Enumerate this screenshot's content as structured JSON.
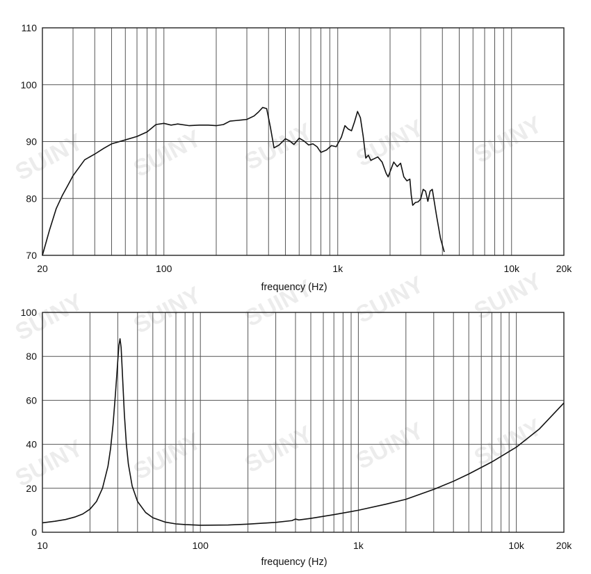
{
  "watermark": "SUINY",
  "chart_data": [
    {
      "type": "line",
      "xscale": "log",
      "xlim": [
        20,
        20000
      ],
      "ylim": [
        70,
        110
      ],
      "xlabel": "frequency (Hz)",
      "ylabel": "",
      "grid": true,
      "x_ticks": [
        {
          "value": 20,
          "label": "20"
        },
        {
          "value": 100,
          "label": "100"
        },
        {
          "value": 1000,
          "label": "1k"
        },
        {
          "value": 10000,
          "label": "10k"
        },
        {
          "value": 20000,
          "label": "20k"
        }
      ],
      "y_ticks": [
        {
          "value": 70,
          "label": "70"
        },
        {
          "value": 80,
          "label": "80"
        },
        {
          "value": 90,
          "label": "90"
        },
        {
          "value": 100,
          "label": "100"
        },
        {
          "value": 110,
          "label": "110"
        }
      ],
      "series": [
        {
          "x": [
            20,
            22,
            24,
            26,
            28,
            30,
            35,
            40,
            45,
            50,
            60,
            70,
            80,
            90,
            100,
            110,
            120,
            140,
            160,
            180,
            200,
            220,
            240,
            260,
            280,
            300,
            330,
            350,
            370,
            390,
            410,
            430,
            460,
            500,
            530,
            560,
            600,
            640,
            680,
            720,
            760,
            800,
            860,
            920,
            980,
            1050,
            1100,
            1150,
            1200,
            1250,
            1300,
            1350,
            1400,
            1450,
            1500,
            1550,
            1600,
            1700,
            1800,
            1900,
            1950,
            2000,
            2100,
            2200,
            2300,
            2400,
            2500,
            2600,
            2650,
            2700,
            2800,
            2900,
            3000,
            3100,
            3200,
            3300,
            3400,
            3500,
            3700,
            3900,
            4100
          ],
          "y": [
            70,
            74.5,
            78.2,
            80.5,
            82.3,
            84,
            86.8,
            87.8,
            88.8,
            89.6,
            90.3,
            90.9,
            91.7,
            93,
            93.2,
            92.9,
            93.1,
            92.8,
            92.9,
            92.9,
            92.8,
            93,
            93.6,
            93.7,
            93.8,
            93.9,
            94.5,
            95.2,
            96,
            95.8,
            92.5,
            88.9,
            89.4,
            90.5,
            90.1,
            89.5,
            90.6,
            90.1,
            89.4,
            89.6,
            89.1,
            88.1,
            88.5,
            89.3,
            89.1,
            90.8,
            92.8,
            92.2,
            91.9,
            93.5,
            95.3,
            94.2,
            91,
            87.1,
            87.6,
            86.7,
            86.9,
            87.3,
            86.4,
            84.4,
            83.8,
            84.7,
            86.4,
            85.6,
            86.2,
            83.8,
            83.1,
            83.4,
            80.5,
            78.8,
            79.3,
            79.4,
            79.9,
            81.6,
            81.3,
            79.5,
            81.3,
            81.6,
            77,
            73,
            70.6
          ]
        }
      ]
    },
    {
      "type": "line",
      "xscale": "log",
      "xlim": [
        10,
        20000
      ],
      "ylim": [
        0,
        100
      ],
      "xlabel": "frequency (Hz)",
      "ylabel": "",
      "grid": true,
      "x_ticks": [
        {
          "value": 10,
          "label": "10"
        },
        {
          "value": 100,
          "label": "100"
        },
        {
          "value": 1000,
          "label": "1k"
        },
        {
          "value": 10000,
          "label": "10k"
        },
        {
          "value": 20000,
          "label": "20k"
        }
      ],
      "y_ticks": [
        {
          "value": 0,
          "label": "0"
        },
        {
          "value": 20,
          "label": "20"
        },
        {
          "value": 40,
          "label": "40"
        },
        {
          "value": 60,
          "label": "60"
        },
        {
          "value": 80,
          "label": "80"
        },
        {
          "value": 100,
          "label": "100"
        }
      ],
      "series": [
        {
          "x": [
            10,
            12,
            14,
            16,
            18,
            20,
            22,
            24,
            26,
            27,
            28,
            29,
            30,
            30.5,
            31,
            31.5,
            32,
            33,
            34,
            35,
            37,
            40,
            45,
            50,
            60,
            70,
            80,
            100,
            150,
            200,
            300,
            380,
            400,
            420,
            500,
            700,
            1000,
            1500,
            2000,
            3000,
            4000,
            5000,
            7000,
            10000,
            14000,
            20000
          ],
          "y": [
            4.3,
            5,
            5.8,
            6.9,
            8.3,
            10.5,
            14,
            20,
            30,
            38,
            49,
            63,
            78,
            85,
            88,
            84,
            74,
            54,
            40,
            31,
            21,
            14,
            9,
            6.6,
            4.6,
            3.8,
            3.5,
            3.2,
            3.3,
            3.7,
            4.5,
            5.3,
            6,
            5.6,
            6.3,
            8,
            10,
            12.8,
            15,
            19.5,
            23.2,
            26.5,
            32,
            38.7,
            47,
            58.8
          ]
        }
      ]
    }
  ]
}
